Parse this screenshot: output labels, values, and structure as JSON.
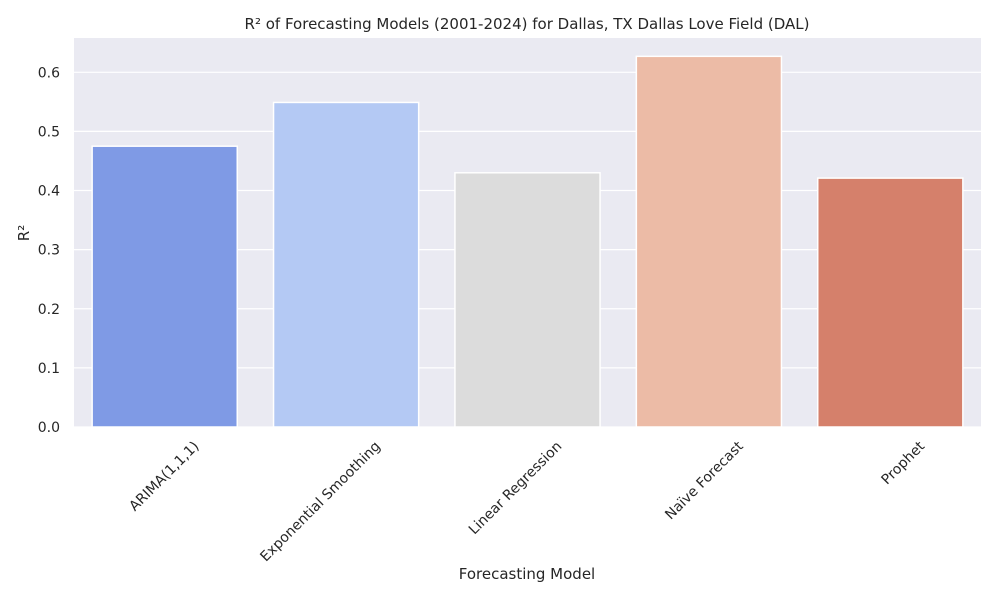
{
  "chart_data": {
    "type": "bar",
    "title": "R² of Forecasting Models (2001-2024) for Dallas, TX Dallas Love Field (DAL)",
    "xlabel": "Forecasting Model",
    "ylabel": "R²",
    "categories": [
      "ARIMA(1,1,1)",
      "Exponential Smoothing",
      "Linear Regression",
      "Naïve Forecast",
      "Prophet"
    ],
    "values": [
      0.475,
      0.549,
      0.43,
      0.627,
      0.421
    ],
    "colors": [
      "#7f9ae5",
      "#b4c9f4",
      "#dcdcdc",
      "#ecbba6",
      "#d5806b"
    ],
    "ylim": [
      0,
      0.658
    ],
    "yticks": [
      0.0,
      0.1,
      0.2,
      0.3,
      0.4,
      0.5,
      0.6
    ],
    "ytick_labels": [
      "0.0",
      "0.1",
      "0.2",
      "0.3",
      "0.4",
      "0.5",
      "0.6"
    ],
    "grid": true,
    "background": "#eaeaf2",
    "grid_color": "#ffffff"
  }
}
